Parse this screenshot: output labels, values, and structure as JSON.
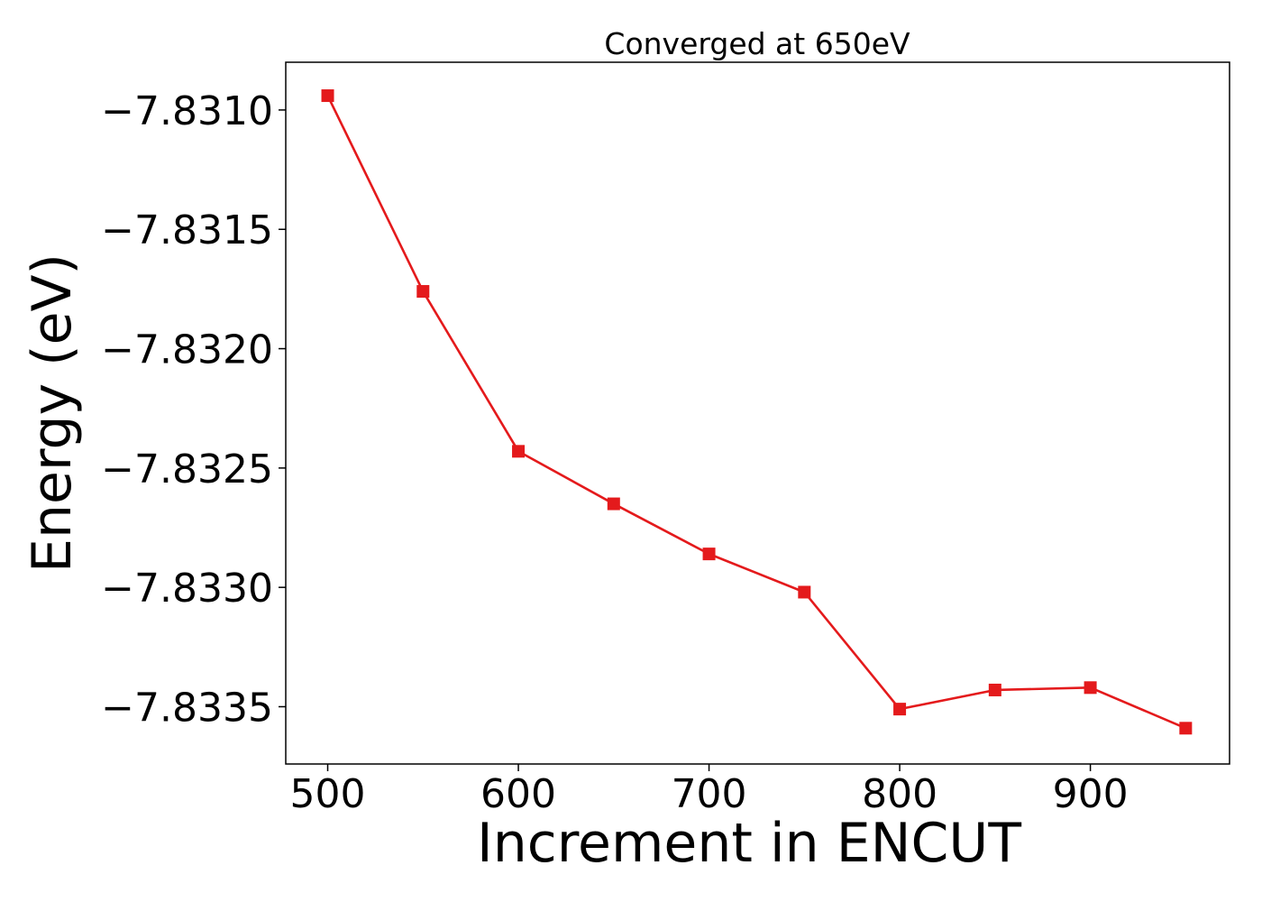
{
  "chart_data": {
    "type": "line",
    "title": "Converged at 650eV",
    "xlabel": "Increment in ENCUT",
    "ylabel": "Energy (eV)",
    "x": [
      500,
      550,
      600,
      650,
      700,
      750,
      800,
      850,
      900,
      950
    ],
    "series": [
      {
        "values": [
          -7.83094,
          -7.83176,
          -7.83243,
          -7.83265,
          -7.83286,
          -7.83302,
          -7.83351,
          -7.83343,
          -7.83342,
          -7.83359
        ],
        "color": "#e41a1c",
        "marker": "square"
      }
    ],
    "xlim": [
      478,
      973
    ],
    "ylim": [
      -7.83374,
      -7.8308
    ],
    "xticks": [
      500,
      600,
      700,
      800,
      900
    ],
    "xtick_labels": [
      "500",
      "600",
      "700",
      "800",
      "900"
    ],
    "yticks": [
      -7.831,
      -7.8315,
      -7.832,
      -7.8325,
      -7.833,
      -7.8335
    ],
    "ytick_labels": [
      "−7.8310",
      "−7.8315",
      "−7.8320",
      "−7.8325",
      "−7.8330",
      "−7.8335"
    ],
    "grid": false,
    "legend": false
  }
}
